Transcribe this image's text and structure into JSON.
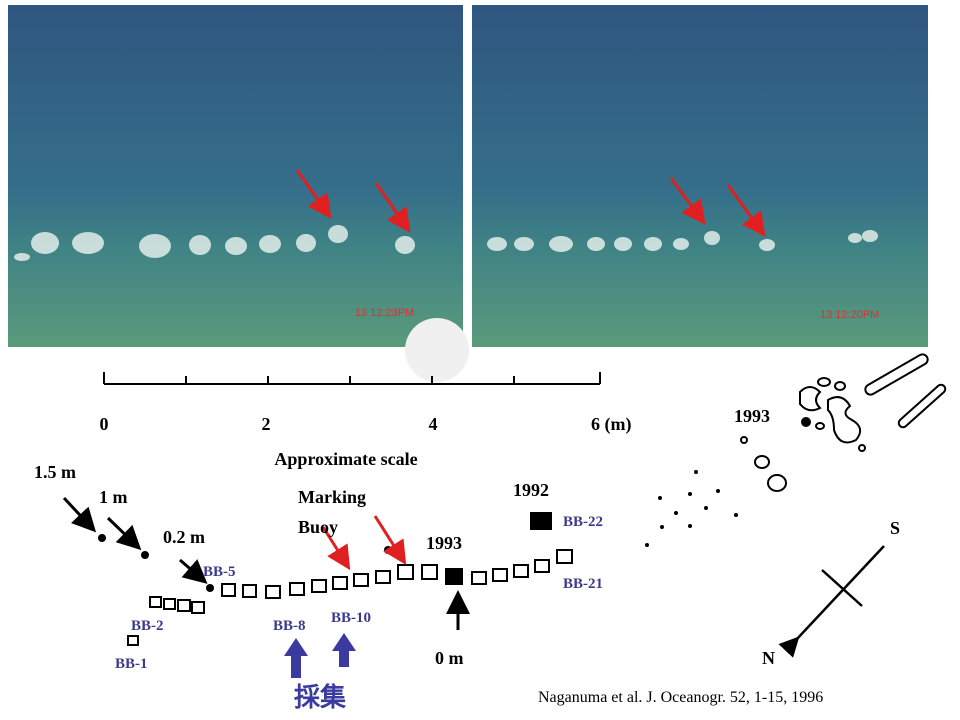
{
  "photos": [
    {
      "timestamp": "13  12:23PM"
    },
    {
      "timestamp": "13  12:20PM"
    }
  ],
  "scale": {
    "ticks": [
      "0",
      "2",
      "4",
      "6 (m)"
    ],
    "label": "Approximate scale"
  },
  "distances": [
    "1.5 m",
    "1 m",
    "0.2 m"
  ],
  "marking_buoy": [
    "Marking",
    "Buoy"
  ],
  "years": [
    "1993",
    "1992",
    "1993"
  ],
  "blocks": [
    "BB-1",
    "BB-2",
    "BB-5",
    "BB-8",
    "BB-10",
    "BB-21",
    "BB-22"
  ],
  "zero": "0 m",
  "sampling": "採集",
  "compass": [
    "S",
    "N"
  ],
  "citation": "Naganuma  et al. J. Oceanogr. 52, 1-15, 1996"
}
